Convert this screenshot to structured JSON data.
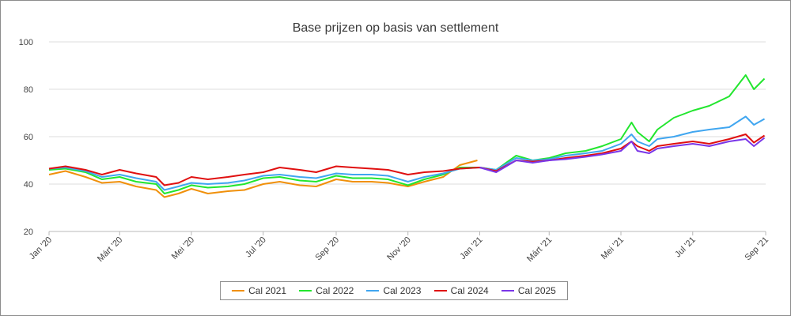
{
  "chart_data": {
    "type": "line",
    "title": "Base prijzen op basis van settlement",
    "xlabel": "",
    "ylabel": "",
    "ylim": [
      20,
      100
    ],
    "yticks": [
      20,
      40,
      60,
      80,
      100
    ],
    "xlim": [
      "2020-01-01",
      "2021-09-01"
    ],
    "xticks": [
      {
        "label": "Jan '20",
        "date": "2020-01-01"
      },
      {
        "label": "Márt '20",
        "date": "2020-03-01"
      },
      {
        "label": "Mei '20",
        "date": "2020-05-01"
      },
      {
        "label": "Jul '20",
        "date": "2020-07-01"
      },
      {
        "label": "Sep '20",
        "date": "2020-09-01"
      },
      {
        "label": "Nov '20",
        "date": "2020-11-01"
      },
      {
        "label": "Jan '21",
        "date": "2021-01-01"
      },
      {
        "label": "Márt '21",
        "date": "2021-03-01"
      },
      {
        "label": "Mei '21",
        "date": "2021-05-01"
      },
      {
        "label": "Jul '21",
        "date": "2021-07-01"
      },
      {
        "label": "Sep '21",
        "date": "2021-09-01"
      }
    ],
    "grid": true,
    "legend_position": "bottom",
    "series": [
      {
        "name": "Cal 2021",
        "color": "#f0900a",
        "points": [
          [
            "2020-01-01",
            44
          ],
          [
            "2020-01-15",
            45.5
          ],
          [
            "2020-02-01",
            43
          ],
          [
            "2020-02-15",
            40.5
          ],
          [
            "2020-03-01",
            41
          ],
          [
            "2020-03-15",
            39
          ],
          [
            "2020-04-01",
            37.5
          ],
          [
            "2020-04-08",
            34.5
          ],
          [
            "2020-04-20",
            36
          ],
          [
            "2020-05-01",
            38
          ],
          [
            "2020-05-15",
            36
          ],
          [
            "2020-06-01",
            37
          ],
          [
            "2020-06-15",
            37.5
          ],
          [
            "2020-07-01",
            40
          ],
          [
            "2020-07-15",
            41
          ],
          [
            "2020-08-01",
            39.5
          ],
          [
            "2020-08-15",
            39
          ],
          [
            "2020-09-01",
            42
          ],
          [
            "2020-09-15",
            41
          ],
          [
            "2020-10-01",
            41
          ],
          [
            "2020-10-15",
            40.5
          ],
          [
            "2020-11-01",
            39
          ],
          [
            "2020-11-15",
            41
          ],
          [
            "2020-12-01",
            43
          ],
          [
            "2020-12-15",
            48
          ],
          [
            "2020-12-30",
            50
          ]
        ]
      },
      {
        "name": "Cal 2022",
        "color": "#22e62e",
        "points": [
          [
            "2020-01-01",
            46
          ],
          [
            "2020-01-15",
            46.5
          ],
          [
            "2020-02-01",
            45
          ],
          [
            "2020-02-15",
            42
          ],
          [
            "2020-03-01",
            43
          ],
          [
            "2020-03-15",
            41
          ],
          [
            "2020-04-01",
            40
          ],
          [
            "2020-04-08",
            36
          ],
          [
            "2020-04-20",
            37.5
          ],
          [
            "2020-05-01",
            39.5
          ],
          [
            "2020-05-15",
            38.5
          ],
          [
            "2020-06-01",
            39
          ],
          [
            "2020-06-15",
            40
          ],
          [
            "2020-07-01",
            42.5
          ],
          [
            "2020-07-15",
            43
          ],
          [
            "2020-08-01",
            41.5
          ],
          [
            "2020-08-15",
            41
          ],
          [
            "2020-09-01",
            43.5
          ],
          [
            "2020-09-15",
            42.5
          ],
          [
            "2020-10-01",
            42.5
          ],
          [
            "2020-10-15",
            42
          ],
          [
            "2020-11-01",
            39.5
          ],
          [
            "2020-11-15",
            42
          ],
          [
            "2020-12-01",
            44
          ],
          [
            "2020-12-15",
            47
          ],
          [
            "2021-01-01",
            47
          ],
          [
            "2021-01-15",
            46
          ],
          [
            "2021-02-01",
            52
          ],
          [
            "2021-02-15",
            50
          ],
          [
            "2021-03-01",
            51
          ],
          [
            "2021-03-15",
            53
          ],
          [
            "2021-04-01",
            54
          ],
          [
            "2021-04-15",
            56
          ],
          [
            "2021-05-01",
            59
          ],
          [
            "2021-05-10",
            66
          ],
          [
            "2021-05-15",
            62
          ],
          [
            "2021-05-25",
            58
          ],
          [
            "2021-06-01",
            63
          ],
          [
            "2021-06-15",
            68
          ],
          [
            "2021-07-01",
            71
          ],
          [
            "2021-07-15",
            73
          ],
          [
            "2021-08-01",
            77
          ],
          [
            "2021-08-15",
            86
          ],
          [
            "2021-08-22",
            80
          ],
          [
            "2021-08-31",
            84.5
          ]
        ]
      },
      {
        "name": "Cal 2023",
        "color": "#40a6f0",
        "points": [
          [
            "2020-01-01",
            46.5
          ],
          [
            "2020-01-15",
            47
          ],
          [
            "2020-02-01",
            45.5
          ],
          [
            "2020-02-15",
            43
          ],
          [
            "2020-03-01",
            44
          ],
          [
            "2020-03-15",
            42.5
          ],
          [
            "2020-04-01",
            41
          ],
          [
            "2020-04-08",
            37.5
          ],
          [
            "2020-04-20",
            39
          ],
          [
            "2020-05-01",
            40.5
          ],
          [
            "2020-05-15",
            40
          ],
          [
            "2020-06-01",
            40.5
          ],
          [
            "2020-06-15",
            41.5
          ],
          [
            "2020-07-01",
            43.5
          ],
          [
            "2020-07-15",
            44
          ],
          [
            "2020-08-01",
            43
          ],
          [
            "2020-08-15",
            42.5
          ],
          [
            "2020-09-01",
            44.5
          ],
          [
            "2020-09-15",
            44
          ],
          [
            "2020-10-01",
            44
          ],
          [
            "2020-10-15",
            43.5
          ],
          [
            "2020-11-01",
            41
          ],
          [
            "2020-11-15",
            43
          ],
          [
            "2020-12-01",
            44.5
          ],
          [
            "2020-12-15",
            46.5
          ],
          [
            "2021-01-01",
            47
          ],
          [
            "2021-01-15",
            46
          ],
          [
            "2021-02-01",
            51
          ],
          [
            "2021-02-15",
            50
          ],
          [
            "2021-03-01",
            50.5
          ],
          [
            "2021-03-15",
            52
          ],
          [
            "2021-04-01",
            53
          ],
          [
            "2021-04-15",
            54
          ],
          [
            "2021-05-01",
            57
          ],
          [
            "2021-05-10",
            61
          ],
          [
            "2021-05-15",
            58
          ],
          [
            "2021-05-25",
            56
          ],
          [
            "2021-06-01",
            59
          ],
          [
            "2021-06-15",
            60
          ],
          [
            "2021-07-01",
            62
          ],
          [
            "2021-07-15",
            63
          ],
          [
            "2021-08-01",
            64
          ],
          [
            "2021-08-15",
            68.5
          ],
          [
            "2021-08-22",
            65
          ],
          [
            "2021-08-31",
            67.5
          ]
        ]
      },
      {
        "name": "Cal 2024",
        "color": "#e01010",
        "points": [
          [
            "2020-01-01",
            46.5
          ],
          [
            "2020-01-15",
            47.5
          ],
          [
            "2020-02-01",
            46
          ],
          [
            "2020-02-15",
            44
          ],
          [
            "2020-03-01",
            46
          ],
          [
            "2020-03-15",
            44.5
          ],
          [
            "2020-04-01",
            43
          ],
          [
            "2020-04-08",
            39.5
          ],
          [
            "2020-04-20",
            40.5
          ],
          [
            "2020-05-01",
            43
          ],
          [
            "2020-05-15",
            42
          ],
          [
            "2020-06-01",
            43
          ],
          [
            "2020-06-15",
            44
          ],
          [
            "2020-07-01",
            45
          ],
          [
            "2020-07-15",
            47
          ],
          [
            "2020-08-01",
            46
          ],
          [
            "2020-08-15",
            45
          ],
          [
            "2020-09-01",
            47.5
          ],
          [
            "2020-09-15",
            47
          ],
          [
            "2020-10-01",
            46.5
          ],
          [
            "2020-10-15",
            46
          ],
          [
            "2020-11-01",
            44
          ],
          [
            "2020-11-15",
            45
          ],
          [
            "2020-12-01",
            45.5
          ],
          [
            "2020-12-15",
            46.5
          ],
          [
            "2021-01-01",
            47
          ],
          [
            "2021-01-15",
            45.5
          ],
          [
            "2021-02-01",
            50
          ],
          [
            "2021-02-15",
            49.5
          ],
          [
            "2021-03-01",
            50
          ],
          [
            "2021-03-15",
            51
          ],
          [
            "2021-04-01",
            52
          ],
          [
            "2021-04-15",
            53
          ],
          [
            "2021-05-01",
            55
          ],
          [
            "2021-05-10",
            58
          ],
          [
            "2021-05-15",
            56
          ],
          [
            "2021-05-25",
            54
          ],
          [
            "2021-06-01",
            56
          ],
          [
            "2021-06-15",
            57
          ],
          [
            "2021-07-01",
            58
          ],
          [
            "2021-07-15",
            57
          ],
          [
            "2021-08-01",
            59
          ],
          [
            "2021-08-15",
            61
          ],
          [
            "2021-08-22",
            57.5
          ],
          [
            "2021-08-31",
            60.5
          ]
        ]
      },
      {
        "name": "Cal 2025",
        "color": "#7a36e8",
        "points": [
          [
            "2021-01-01",
            47
          ],
          [
            "2021-01-15",
            45
          ],
          [
            "2021-02-01",
            50
          ],
          [
            "2021-02-15",
            49
          ],
          [
            "2021-03-01",
            50
          ],
          [
            "2021-03-15",
            50.5
          ],
          [
            "2021-04-01",
            51.5
          ],
          [
            "2021-04-15",
            52.5
          ],
          [
            "2021-05-01",
            54
          ],
          [
            "2021-05-10",
            58
          ],
          [
            "2021-05-15",
            54
          ],
          [
            "2021-05-25",
            53
          ],
          [
            "2021-06-01",
            55
          ],
          [
            "2021-06-15",
            56
          ],
          [
            "2021-07-01",
            57
          ],
          [
            "2021-07-15",
            56
          ],
          [
            "2021-08-01",
            58
          ],
          [
            "2021-08-15",
            59
          ],
          [
            "2021-08-22",
            56
          ],
          [
            "2021-08-31",
            59.5
          ]
        ]
      }
    ]
  }
}
